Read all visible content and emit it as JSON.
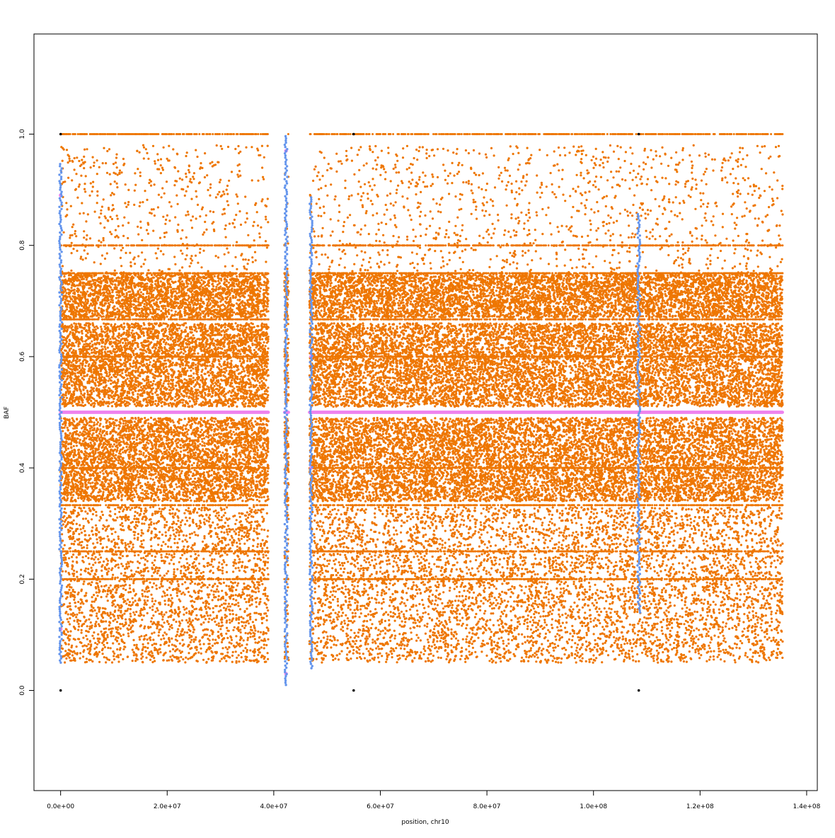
{
  "chart_data": {
    "type": "scatter",
    "title": "",
    "xlabel": "position, chr10",
    "ylabel": "BAF",
    "xlim": [
      -5000000,
      142000000
    ],
    "ylim": [
      -0.18,
      1.18
    ],
    "x_ticks": [
      0,
      20000000,
      40000000,
      60000000,
      80000000,
      100000000,
      120000000,
      140000000
    ],
    "x_tick_labels": [
      "0.0e+00",
      "2.0e+07",
      "4.0e+07",
      "6.0e+07",
      "8.0e+07",
      "1.0e+08",
      "1.2e+08",
      "1.4e+08"
    ],
    "y_ticks": [
      0,
      0.2,
      0.4,
      0.6,
      0.8,
      1.0
    ],
    "y_tick_labels": [
      "0.0",
      "0.2",
      "0.4",
      "0.6",
      "0.8",
      "1.0"
    ],
    "grid": false,
    "legend": "none",
    "x_range_data": [
      0,
      135500000
    ],
    "gaps": [
      [
        39000000,
        42000000
      ],
      [
        42800000,
        46700000
      ]
    ],
    "series": [
      {
        "color": "#EE7600",
        "role": "bulk",
        "x_range": [
          0,
          135500000
        ],
        "bands": [
          {
            "y": [
              0.34,
              0.49
            ],
            "density": "high"
          },
          {
            "y": [
              0.51,
              0.66
            ],
            "density": "high"
          },
          {
            "y": [
              0.05,
              0.33
            ],
            "density": "medium"
          },
          {
            "y": [
              0.67,
              0.75
            ],
            "density": "medium"
          },
          {
            "y": [
              0.75,
              0.98
            ],
            "density": "low"
          }
        ],
        "horizontal_lines": [
          1.0,
          0.667,
          0.333,
          0.75,
          0.25,
          0.6,
          0.4,
          0.2,
          0.8
        ]
      },
      {
        "color": "#EE82EE",
        "role": "heterozygous line",
        "y": 0.5,
        "x_range": [
          0,
          135500000
        ],
        "points": [
          [
            0,
            0.89
          ],
          [
            0,
            0.11
          ],
          [
            42300000,
            0.97
          ],
          [
            42300000,
            0.03
          ],
          [
            47000000,
            0.6
          ],
          [
            47000000,
            0.4
          ]
        ]
      },
      {
        "color": "#6495ED",
        "role": "vertical streaks",
        "streaks": [
          {
            "x": 42300000,
            "y": [
              0.01,
              1.0
            ]
          },
          {
            "x": 47000000,
            "y": [
              0.04,
              0.89
            ]
          },
          {
            "x": 108500000,
            "y": [
              0.14,
              0.86
            ]
          },
          {
            "x": 0,
            "y": [
              0.05,
              0.95
            ]
          }
        ]
      },
      {
        "color": "#000000",
        "role": "homozygous calls",
        "points": [
          [
            0,
            1.0
          ],
          [
            0,
            0.0
          ],
          [
            55000000,
            1.0
          ],
          [
            55000000,
            0.0
          ],
          [
            108500000,
            1.0
          ],
          [
            108500000,
            0.0
          ]
        ]
      }
    ]
  }
}
